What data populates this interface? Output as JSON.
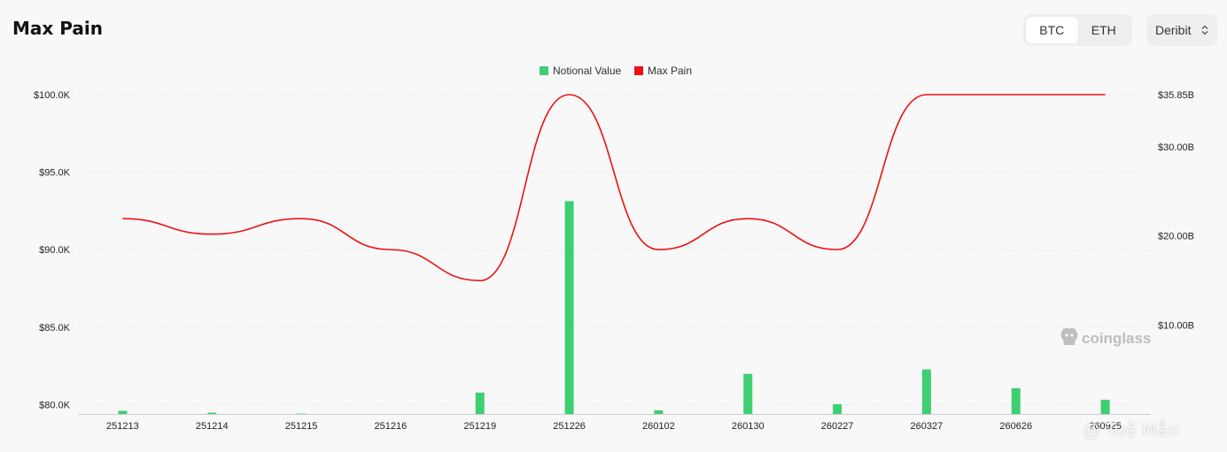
{
  "header": {
    "title": "Max Pain",
    "coin_tabs": [
      {
        "label": "BTC",
        "active": true
      },
      {
        "label": "ETH",
        "active": false
      }
    ],
    "exchange_select": {
      "value": "Deribit",
      "icon": "chevron-updown-icon"
    }
  },
  "watermark": {
    "brand": "coinglass",
    "user": "@ Tuệ Mẫn"
  },
  "colors": {
    "notional": "#3ecf73",
    "max_pain": "#ee1111",
    "grid": "#e8e8e8"
  },
  "chart_data": {
    "type": "bar+line",
    "legend": [
      "Notional Value",
      "Max Pain"
    ],
    "legend_position": "top-center",
    "categories": [
      "251213",
      "251214",
      "251215",
      "251216",
      "251219",
      "251226",
      "260102",
      "260130",
      "260227",
      "260327",
      "260626",
      "260925"
    ],
    "series": [
      {
        "name": "Notional Value",
        "type": "bar",
        "axis": "right",
        "unit": "USD",
        "values": [
          350000000.0,
          150000000.0,
          50000000.0,
          0,
          2400000000.0,
          23900000000.0,
          400000000.0,
          4500000000.0,
          1100000000.0,
          5000000000.0,
          2900000000.0,
          1600000000.0
        ]
      },
      {
        "name": "Max Pain",
        "type": "line",
        "axis": "left",
        "unit": "USD",
        "values": [
          92000,
          91000,
          92000,
          90000,
          88000,
          100000,
          90000,
          92000,
          90000,
          100000,
          100000,
          100000
        ]
      }
    ],
    "y_left": {
      "ticks": [
        "$80.0K",
        "$85.0K",
        "$90.0K",
        "$95.0K",
        "$100.0K"
      ],
      "tick_values": [
        80000,
        85000,
        90000,
        95000,
        100000
      ]
    },
    "y_right": {
      "ticks": [
        "$10.00B",
        "$20.00B",
        "$30.00B",
        "$35.85B"
      ],
      "tick_values": [
        10000000000.0,
        20000000000.0,
        30000000000.0,
        35850000000.0
      ]
    },
    "grid": true
  }
}
